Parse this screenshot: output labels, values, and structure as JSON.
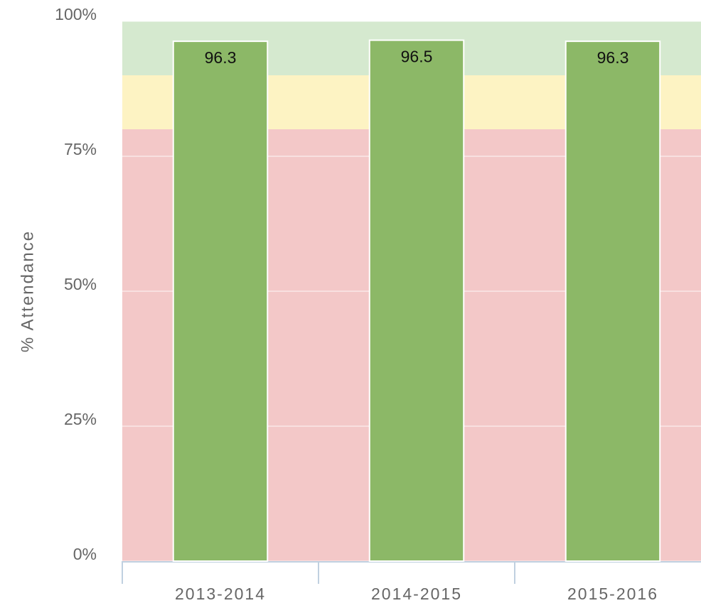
{
  "chart_data": {
    "type": "bar",
    "y_axis_label": "% Attendance",
    "categories": [
      "2013-2014",
      "2014-2015",
      "2015-2016"
    ],
    "values": [
      96.3,
      96.5,
      96.3
    ],
    "color": "#8cb867",
    "ylim": [
      0,
      100
    ],
    "yticks": [
      {
        "value": 0,
        "label": "0%"
      },
      {
        "value": 25,
        "label": "25%"
      },
      {
        "value": 50,
        "label": "50%"
      },
      {
        "value": 75,
        "label": "75%"
      },
      {
        "value": 100,
        "label": "100%"
      }
    ],
    "grid": true,
    "bands": [
      {
        "from": 0,
        "to": 80,
        "color": "#f3c8c8"
      },
      {
        "from": 80,
        "to": 90,
        "color": "#fdf3c3"
      },
      {
        "from": 90,
        "to": 100,
        "color": "#d5e9cf"
      }
    ]
  }
}
